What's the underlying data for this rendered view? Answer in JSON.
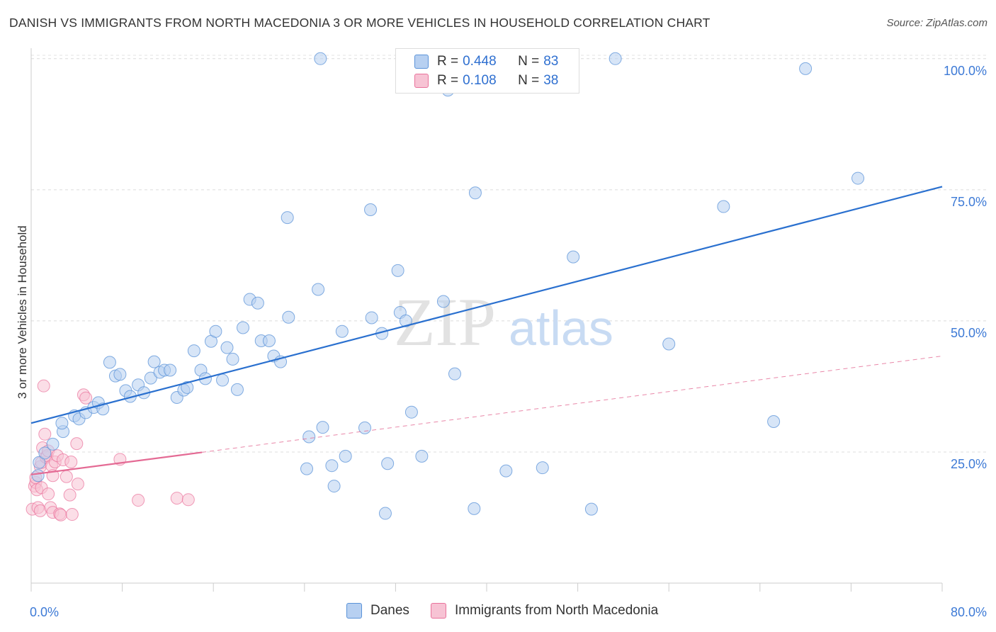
{
  "title": "DANISH VS IMMIGRANTS FROM NORTH MACEDONIA 3 OR MORE VEHICLES IN HOUSEHOLD CORRELATION CHART",
  "source": "Source: ZipAtlas.com",
  "watermark": {
    "zip": "ZIP",
    "atlas": "atlas"
  },
  "legend": {
    "rows": [
      {
        "r_label": "R =",
        "r_value": "0.448",
        "n_label": "N =",
        "n_value": "83",
        "color": "#a9c7ef"
      },
      {
        "r_label": "R =",
        "r_value": "0.108",
        "n_label": "N =",
        "n_value": "38",
        "color": "#f5b3c8"
      }
    ]
  },
  "bottom_legend": {
    "danes": "Danes",
    "macedonia": "Immigrants from North Macedonia"
  },
  "colors": {
    "blue": "#5b93d8",
    "blue_fill": "#b7d0f1",
    "pink": "#e9729b",
    "pink_fill": "#f7c3d4",
    "blue_line": "#2a70cf",
    "pink_line": "#e46a94",
    "tick_text": "#3d7ad6"
  },
  "chart_data": {
    "type": "scatter",
    "title": "DANISH VS IMMIGRANTS FROM NORTH MACEDONIA 3 OR MORE VEHICLES IN HOUSEHOLD CORRELATION CHART",
    "xlabel": "",
    "ylabel": "3 or more Vehicles in Household",
    "xlim": [
      0,
      80
    ],
    "ylim": [
      0,
      102
    ],
    "x_tick_labels": [
      "0.0%",
      "80.0%"
    ],
    "y_tick_values": [
      25,
      50,
      75,
      100
    ],
    "y_tick_labels": [
      "25.0%",
      "50.0%",
      "75.0%",
      "100.0%"
    ],
    "grid": true,
    "legend_position": "top-center",
    "series": [
      {
        "name": "Danes",
        "points": [
          [
            0.6,
            20.5
          ],
          [
            0.7,
            23.0
          ],
          [
            1.2,
            24.8
          ],
          [
            1.9,
            26.5
          ],
          [
            2.8,
            28.9
          ],
          [
            2.7,
            30.5
          ],
          [
            3.8,
            31.9
          ],
          [
            4.2,
            31.3
          ],
          [
            4.8,
            32.5
          ],
          [
            5.5,
            33.5
          ],
          [
            5.9,
            34.4
          ],
          [
            6.3,
            33.2
          ],
          [
            6.9,
            42.1
          ],
          [
            7.4,
            39.5
          ],
          [
            7.8,
            39.8
          ],
          [
            8.3,
            36.7
          ],
          [
            8.7,
            35.6
          ],
          [
            9.4,
            37.8
          ],
          [
            9.9,
            36.3
          ],
          [
            10.5,
            39.1
          ],
          [
            10.8,
            42.2
          ],
          [
            11.3,
            40.2
          ],
          [
            11.7,
            40.6
          ],
          [
            12.2,
            40.6
          ],
          [
            12.8,
            35.4
          ],
          [
            13.4,
            36.8
          ],
          [
            13.7,
            37.3
          ],
          [
            14.3,
            44.3
          ],
          [
            14.9,
            40.6
          ],
          [
            15.3,
            39.0
          ],
          [
            15.8,
            46.1
          ],
          [
            16.2,
            48.0
          ],
          [
            16.8,
            38.7
          ],
          [
            17.2,
            44.9
          ],
          [
            17.7,
            42.7
          ],
          [
            18.1,
            36.9
          ],
          [
            18.6,
            48.7
          ],
          [
            19.2,
            54.1
          ],
          [
            19.9,
            53.4
          ],
          [
            20.2,
            46.2
          ],
          [
            20.9,
            46.2
          ],
          [
            21.3,
            43.3
          ],
          [
            21.9,
            42.2
          ],
          [
            22.5,
            69.7
          ],
          [
            22.6,
            50.7
          ],
          [
            25.2,
            56.0
          ],
          [
            25.4,
            100.0
          ],
          [
            24.4,
            27.9
          ],
          [
            25.6,
            29.7
          ],
          [
            24.2,
            21.8
          ],
          [
            26.4,
            22.4
          ],
          [
            26.6,
            18.5
          ],
          [
            27.3,
            48.0
          ],
          [
            27.6,
            24.2
          ],
          [
            29.3,
            29.6
          ],
          [
            29.8,
            71.2
          ],
          [
            29.9,
            50.6
          ],
          [
            30.8,
            47.6
          ],
          [
            31.3,
            22.8
          ],
          [
            31.1,
            13.3
          ],
          [
            32.2,
            59.6
          ],
          [
            32.4,
            51.6
          ],
          [
            32.9,
            50.0
          ],
          [
            33.4,
            32.6
          ],
          [
            34.3,
            24.2
          ],
          [
            36.2,
            53.7
          ],
          [
            36.6,
            94.0
          ],
          [
            37.2,
            39.9
          ],
          [
            38.7,
            100.0
          ],
          [
            39.0,
            74.4
          ],
          [
            38.9,
            14.2
          ],
          [
            41.7,
            21.4
          ],
          [
            43.0,
            100.0
          ],
          [
            44.7,
            100.0
          ],
          [
            44.9,
            22.0
          ],
          [
            47.6,
            62.2
          ],
          [
            49.2,
            14.1
          ],
          [
            51.3,
            100.0
          ],
          [
            56.0,
            45.6
          ],
          [
            60.8,
            71.8
          ],
          [
            65.2,
            30.8
          ],
          [
            68.0,
            98.1
          ],
          [
            72.6,
            77.2
          ]
        ],
        "trend": {
          "x": [
            0,
            80
          ],
          "y": [
            30.5,
            75.6
          ]
        }
      },
      {
        "name": "Immigrants from North Macedonia",
        "points": [
          [
            0.1,
            14.1
          ],
          [
            0.3,
            18.5
          ],
          [
            0.4,
            19.2
          ],
          [
            0.4,
            20.1
          ],
          [
            0.5,
            17.8
          ],
          [
            0.6,
            14.4
          ],
          [
            0.8,
            13.8
          ],
          [
            0.8,
            22.2
          ],
          [
            0.9,
            23.0
          ],
          [
            0.9,
            18.2
          ],
          [
            1.0,
            25.8
          ],
          [
            1.1,
            37.6
          ],
          [
            1.2,
            28.4
          ],
          [
            1.3,
            24.0
          ],
          [
            1.4,
            24.3
          ],
          [
            1.5,
            25.2
          ],
          [
            1.5,
            17.0
          ],
          [
            1.7,
            14.4
          ],
          [
            1.8,
            22.4
          ],
          [
            1.9,
            20.5
          ],
          [
            1.9,
            13.5
          ],
          [
            2.1,
            23.1
          ],
          [
            2.3,
            24.3
          ],
          [
            2.5,
            13.2
          ],
          [
            2.6,
            13.0
          ],
          [
            2.8,
            23.5
          ],
          [
            3.1,
            20.3
          ],
          [
            3.4,
            16.8
          ],
          [
            3.5,
            23.1
          ],
          [
            3.6,
            13.1
          ],
          [
            4.0,
            26.6
          ],
          [
            4.1,
            18.9
          ],
          [
            4.6,
            35.9
          ],
          [
            4.8,
            35.3
          ],
          [
            7.8,
            23.6
          ],
          [
            9.4,
            15.8
          ],
          [
            12.8,
            16.2
          ],
          [
            13.8,
            15.9
          ]
        ],
        "trend": {
          "x": [
            0,
            80
          ],
          "y": [
            20.7,
            43.3
          ],
          "solid_until_x": 15
        }
      }
    ]
  }
}
